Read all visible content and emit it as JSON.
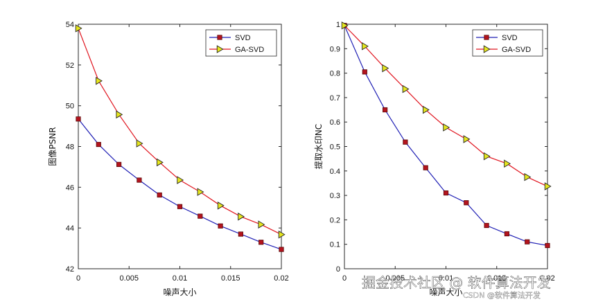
{
  "chart_data": [
    {
      "type": "line",
      "title": "",
      "xlabel": "噪声大小",
      "ylabel": "图像PSNR",
      "xlim": [
        0,
        0.02
      ],
      "ylim": [
        42,
        54
      ],
      "xticks": [
        0,
        0.005,
        0.01,
        0.015,
        0.02
      ],
      "xtick_labels": [
        "0",
        "0.005",
        "0.01",
        "0.015",
        "0.02"
      ],
      "yticks": [
        42,
        44,
        46,
        48,
        50,
        52,
        54
      ],
      "ytick_labels": [
        "42",
        "44",
        "46",
        "48",
        "50",
        "52",
        "54"
      ],
      "x": [
        0,
        0.002,
        0.004,
        0.006,
        0.008,
        0.01,
        0.012,
        0.014,
        0.016,
        0.018,
        0.02
      ],
      "series": [
        {
          "name": "SVD",
          "values": [
            49.35,
            48.1,
            47.12,
            46.35,
            45.62,
            45.05,
            44.58,
            44.1,
            43.7,
            43.3,
            42.95
          ],
          "color": "#1f1fb4",
          "marker": "square",
          "marker_color": "#b4141e"
        },
        {
          "name": "GA-SVD",
          "values": [
            53.8,
            51.22,
            49.57,
            48.15,
            47.22,
            46.35,
            45.77,
            45.1,
            44.56,
            44.17,
            43.68
          ],
          "color": "#e0141e",
          "marker": "triangle-right",
          "marker_color": "#e6e61e"
        }
      ],
      "legend_position": "top-right",
      "grid": false
    },
    {
      "type": "line",
      "title": "",
      "xlabel": "噪声大小",
      "ylabel": "提取水印NC",
      "xlim": [
        0,
        0.02
      ],
      "ylim": [
        0,
        1
      ],
      "xticks": [
        0,
        0.005,
        0.01,
        0.015,
        0.02
      ],
      "xtick_labels": [
        "0",
        "0.005",
        "0.01",
        "0.015",
        "0.02"
      ],
      "yticks": [
        0,
        0.1,
        0.2,
        0.3,
        0.4,
        0.5,
        0.6,
        0.7,
        0.8,
        0.9,
        1
      ],
      "ytick_labels": [
        "0",
        "0.1",
        "0.2",
        "0.3",
        "0.4",
        "0.5",
        "0.6",
        "0.7",
        "0.8",
        "0.9",
        "1"
      ],
      "x": [
        0,
        0.002,
        0.004,
        0.006,
        0.008,
        0.01,
        0.012,
        0.014,
        0.016,
        0.018,
        0.02
      ],
      "series": [
        {
          "name": "SVD",
          "values": [
            0.995,
            0.805,
            0.65,
            0.518,
            0.413,
            0.31,
            0.27,
            0.177,
            0.143,
            0.11,
            0.095
          ],
          "color": "#1f1fb4",
          "marker": "square",
          "marker_color": "#b4141e"
        },
        {
          "name": "GA-SVD",
          "values": [
            0.995,
            0.91,
            0.82,
            0.735,
            0.65,
            0.578,
            0.53,
            0.46,
            0.43,
            0.375,
            0.337
          ],
          "color": "#e0141e",
          "marker": "triangle-right",
          "marker_color": "#e6e61e"
        }
      ],
      "legend_position": "top-right",
      "grid": false
    }
  ],
  "watermark": {
    "main": "掘金技术社区 @ 软件算法开发",
    "sub": "CSDN @软件算法开发"
  }
}
